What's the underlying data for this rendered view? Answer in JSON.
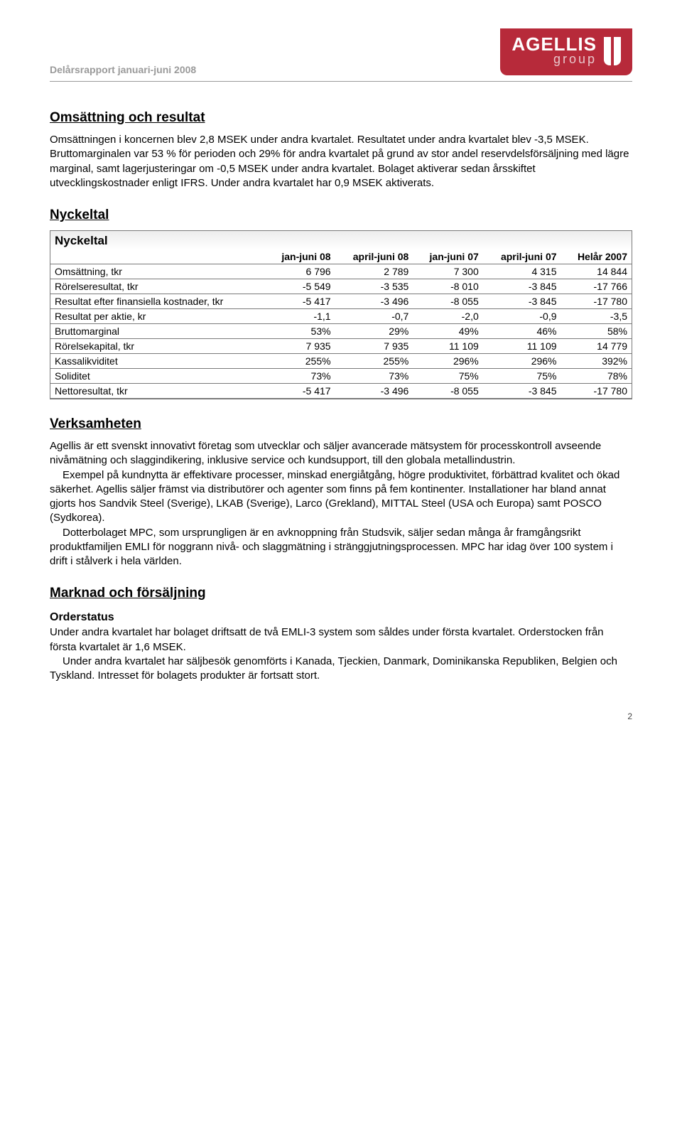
{
  "header": {
    "title": "Delårsrapport januari-juni 2008",
    "logo_main": "AGELLIS",
    "logo_sub": "group",
    "logo_bg": "#b72a3a",
    "logo_text_color": "#ffffff"
  },
  "sections": {
    "omsattning_title": "Omsättning och resultat",
    "omsattning_body": "Omsättningen i koncernen blev 2,8 MSEK under andra kvartalet. Resultatet under andra kvartalet blev -3,5 MSEK. Bruttomarginalen var 53 % för perioden och 29% för andra kvartalet på grund av stor andel reservdelsförsäljning med lägre marginal, samt lagerjusteringar om -0,5 MSEK under andra kvartalet. Bolaget aktiverar sedan årsskiftet utvecklingskostnader enligt IFRS. Under andra kvartalet har 0,9 MSEK aktiverats.",
    "nyckeltal_title": "Nyckeltal",
    "nyckeltal_box_title": "Nyckeltal",
    "verksamheten_title": "Verksamheten",
    "verksamheten_p1": "Agellis är ett svenskt innovativt företag som utvecklar och säljer avancerade mätsystem för processkontroll avseende nivåmätning och slaggindikering, inklusive service och kundsupport, till den globala metallindustrin.",
    "verksamheten_p2": "Exempel på kundnytta är effektivare processer, minskad energiåtgång, högre produktivitet, förbättrad kvalitet och ökad säkerhet. Agellis säljer främst via distributörer och agenter som finns på fem kontinenter. Installationer har bland annat gjorts hos Sandvik Steel (Sverige), LKAB (Sverige), Larco (Grekland), MITTAL Steel (USA och Europa) samt POSCO (Sydkorea).",
    "verksamheten_p3": "Dotterbolaget MPC, som ursprungligen är en avknoppning från Studsvik, säljer sedan många år framgångsrikt produktfamiljen EMLI för noggrann nivå- och slaggmätning i stränggjutningsprocessen. MPC har idag över 100 system i drift i stålverk i hela världen.",
    "marknad_title": "Marknad och försäljning",
    "orderstatus_heading": "Orderstatus",
    "orderstatus_p1": "Under andra kvartalet har bolaget driftsatt de två EMLI-3 system som såldes under första kvartalet. Orderstocken från första kvartalet är 1,6 MSEK.",
    "orderstatus_p2": "Under andra kvartalet har säljbesök genomförts i Kanada, Tjeckien, Danmark, Dominikanska Republiken, Belgien och Tyskland. Intresset för bolagets produkter är fortsatt stort."
  },
  "table": {
    "type": "table",
    "columns": [
      "",
      "jan-juni 08",
      "april-juni 08",
      "jan-juni 07",
      "april-juni 07",
      "Helår 2007"
    ],
    "rows": [
      [
        "Omsättning, tkr",
        "6 796",
        "2 789",
        "7 300",
        "4 315",
        "14 844"
      ],
      [
        "Rörelseresultat, tkr",
        "-5 549",
        "-3 535",
        "-8 010",
        "-3 845",
        "-17 766"
      ],
      [
        "Resultat efter finansiella kostnader, tkr",
        "-5 417",
        "-3 496",
        "-8 055",
        "-3 845",
        "-17 780"
      ],
      [
        "Resultat per aktie, kr",
        "-1,1",
        "-0,7",
        "-2,0",
        "-0,9",
        "-3,5"
      ],
      [
        "Bruttomarginal",
        "53%",
        "29%",
        "49%",
        "46%",
        "58%"
      ],
      [
        "Rörelsekapital, tkr",
        "7 935",
        "7 935",
        "11 109",
        "11 109",
        "14 779"
      ],
      [
        "Kassalikviditet",
        "255%",
        "255%",
        "296%",
        "296%",
        "392%"
      ],
      [
        "Soliditet",
        "73%",
        "73%",
        "75%",
        "75%",
        "78%"
      ],
      [
        "Nettoresultat, tkr",
        "-5 417",
        "-3 496",
        "-8 055",
        "-3 845",
        "-17 780"
      ]
    ],
    "header_bg": "#ffffff",
    "border_color": "#7a7a7a",
    "font_size": 14
  },
  "page_number": "2"
}
